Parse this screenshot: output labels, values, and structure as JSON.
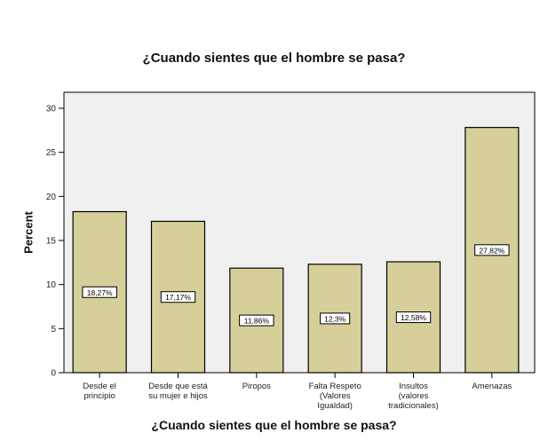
{
  "chart_data": {
    "type": "bar",
    "title": "¿Cuando sientes que el hombre se pasa?",
    "xlabel": "¿Cuando sientes que el hombre se pasa?",
    "ylabel": "Percent",
    "categories": [
      "Desde el\nprincipio",
      "Desde que está\nsu mujer e hijos",
      "Piropos",
      "Falta Respeto\n(Valores\nIgualdad)",
      "Insultos\n(valores\ntradicionales)",
      "Amenazas"
    ],
    "values": [
      18.27,
      17.17,
      11.86,
      12.3,
      12.58,
      27.82
    ],
    "data_labels": [
      "18,27%",
      "17,17%",
      "11,86%",
      "12,3%",
      "12,58%",
      "27,82%"
    ],
    "ylim": [
      0,
      30
    ],
    "yticks": [
      0,
      5,
      10,
      15,
      20,
      25,
      30
    ],
    "grid": false,
    "legend": "none",
    "colors": {
      "bar_fill": "#d6cf99",
      "bar_stroke": "#000000",
      "plot_background": "#f0f0f0",
      "plot_border": "#000000"
    }
  }
}
